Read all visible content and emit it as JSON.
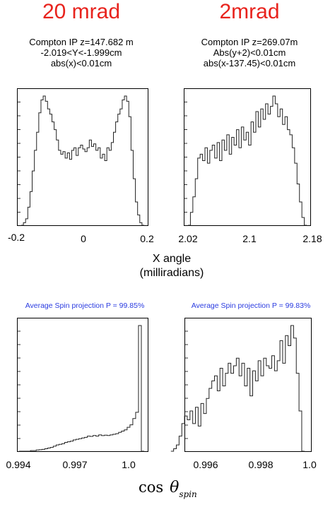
{
  "headers": {
    "left": "20 mrad",
    "right": "2mrad"
  },
  "cuts": {
    "left": [
      "Compton IP z=147.682 m",
      "-2.019<Y<-1.999cm",
      "abs(x)<0.01cm"
    ],
    "right": [
      "Compton IP z=269.07m",
      "Abs(y+2)<0.01cm",
      "abs(x-137.45)<0.01cm"
    ]
  },
  "x_angle_label": [
    "X angle",
    "(milliradians)"
  ],
  "spin": {
    "left": "Average Spin projection P = 99.85%",
    "right": "Average Spin projection P = 99.83%"
  },
  "cos_label": {
    "cos": "cos",
    "theta": "θ",
    "sub": "spin"
  },
  "chart_data": [
    {
      "type": "histogram",
      "panel": "top-left",
      "x_ticks": [
        "-0.2",
        "0",
        "0.2"
      ],
      "xlim": [
        -0.2,
        0.2
      ],
      "ymax": 1.0,
      "x_start": -0.2,
      "x_end": 0.2,
      "values": [
        0.0,
        0.02,
        0.05,
        0.14,
        0.26,
        0.42,
        0.58,
        0.72,
        0.87,
        0.97,
        1.0,
        0.96,
        0.9,
        0.86,
        0.8,
        0.74,
        0.66,
        0.58,
        0.55,
        0.57,
        0.52,
        0.56,
        0.51,
        0.58,
        0.6,
        0.54,
        0.6,
        0.62,
        0.59,
        0.57,
        0.6,
        0.66,
        0.61,
        0.63,
        0.58,
        0.6,
        0.52,
        0.55,
        0.5,
        0.6,
        0.58,
        0.64,
        0.72,
        0.8,
        0.86,
        0.9,
        0.97,
        1.0,
        0.96,
        0.84,
        0.58,
        0.36,
        0.18,
        0.08,
        0.02,
        0.0
      ]
    },
    {
      "type": "histogram",
      "panel": "top-right",
      "x_ticks": [
        "2.02",
        "2.1",
        "2.18"
      ],
      "xlim": [
        2.02,
        2.18
      ],
      "ymax": 1.0,
      "x_start": 2.02,
      "x_end": 2.18,
      "values": [
        0.0,
        0.1,
        0.22,
        0.36,
        0.52,
        0.55,
        0.5,
        0.6,
        0.48,
        0.58,
        0.62,
        0.52,
        0.64,
        0.5,
        0.66,
        0.58,
        0.7,
        0.55,
        0.68,
        0.62,
        0.74,
        0.6,
        0.76,
        0.66,
        0.72,
        0.62,
        0.8,
        0.72,
        0.88,
        0.76,
        0.9,
        0.82,
        0.94,
        0.86,
        0.92,
        1.0,
        0.94,
        0.84,
        0.9,
        0.78,
        0.84,
        0.74,
        0.7,
        0.6,
        0.48,
        0.32,
        0.18,
        0.06,
        0.0
      ]
    },
    {
      "type": "histogram",
      "panel": "bottom-left",
      "x_ticks": [
        "0.994",
        "0.997",
        "1.0"
      ],
      "xlim": [
        0.994,
        1.0
      ],
      "ymax": 1.0,
      "x_start": 0.9939,
      "x_end": 1.0,
      "values": [
        0.0,
        0.0,
        0.0,
        0.0,
        0.005,
        0.005,
        0.01,
        0.012,
        0.015,
        0.02,
        0.025,
        0.03,
        0.04,
        0.05,
        0.055,
        0.06,
        0.07,
        0.075,
        0.08,
        0.09,
        0.095,
        0.1,
        0.105,
        0.11,
        0.12,
        0.118,
        0.125,
        0.12,
        0.13,
        0.124,
        0.128,
        0.125,
        0.13,
        0.135,
        0.14,
        0.15,
        0.16,
        0.17,
        0.19,
        0.21,
        0.26,
        0.31,
        1.0,
        0.0
      ]
    },
    {
      "type": "histogram",
      "panel": "bottom-right",
      "x_ticks": [
        "0.996",
        "0.998",
        "1.0"
      ],
      "xlim": [
        0.996,
        1.0
      ],
      "ymax": 1.0,
      "x_start": 0.9954,
      "x_end": 0.9999,
      "values": [
        0.0,
        0.02,
        0.05,
        0.12,
        0.22,
        0.28,
        0.25,
        0.32,
        0.22,
        0.35,
        0.2,
        0.38,
        0.3,
        0.42,
        0.5,
        0.56,
        0.6,
        0.48,
        0.66,
        0.52,
        0.62,
        0.7,
        0.62,
        0.68,
        0.74,
        0.6,
        0.7,
        0.52,
        0.66,
        0.44,
        0.64,
        0.56,
        0.72,
        0.6,
        0.74,
        0.68,
        0.66,
        0.76,
        0.64,
        0.72,
        0.88,
        0.7,
        0.92,
        0.84,
        1.0,
        0.9,
        0.62,
        0.32,
        0.0
      ]
    }
  ]
}
